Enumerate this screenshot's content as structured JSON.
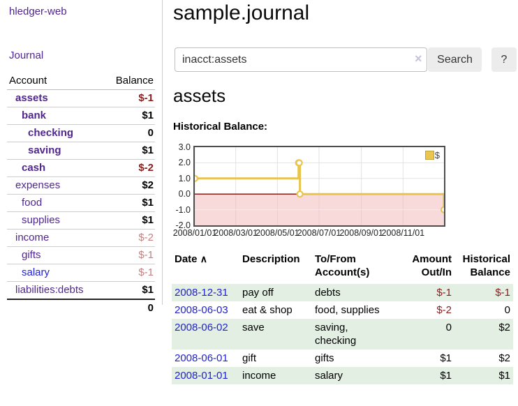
{
  "app": {
    "brand": "hledger-web",
    "nav_journal": "Journal"
  },
  "sidebar": {
    "table": {
      "account_header": "Account",
      "balance_header": "Balance",
      "rows": [
        {
          "name": "assets",
          "balance": "$-1",
          "depth": 1,
          "bold": true
        },
        {
          "name": "bank",
          "balance": "$1",
          "depth": 2,
          "bold": true
        },
        {
          "name": "checking",
          "balance": "0",
          "depth": 3,
          "bold": true
        },
        {
          "name": "saving",
          "balance": "$1",
          "depth": 3,
          "bold": true
        },
        {
          "name": "cash",
          "balance": "$-2",
          "depth": 2,
          "bold": true
        },
        {
          "name": "expenses",
          "balance": "$2",
          "depth": 1,
          "bold": false
        },
        {
          "name": "food",
          "balance": "$1",
          "depth": 2,
          "bold": false
        },
        {
          "name": "supplies",
          "balance": "$1",
          "depth": 2,
          "bold": false
        },
        {
          "name": "income",
          "balance": "$-2",
          "depth": 1,
          "bold": false
        },
        {
          "name": "gifts",
          "balance": "$-1",
          "depth": 2,
          "bold": false
        },
        {
          "name": "salary",
          "balance": "$-1",
          "depth": 2,
          "bold": false,
          "link_color": "blue"
        },
        {
          "name": "liabilities:debts",
          "balance": "$1",
          "depth": 1,
          "bold": false
        }
      ],
      "total": "0"
    }
  },
  "header": {
    "title": "sample.journal"
  },
  "search": {
    "value": "inacct:assets",
    "clear_icon": "×",
    "button_label": "Search",
    "help_label": "?"
  },
  "account_page": {
    "heading": "assets",
    "chart_label": "Historical Balance:"
  },
  "chart_data": {
    "type": "line",
    "style": "step-after",
    "title": "Historical Balance",
    "series": [
      {
        "name": "$",
        "points": [
          {
            "date": "2008-01-01",
            "value": 1
          },
          {
            "date": "2008-06-01",
            "value": 2
          },
          {
            "date": "2008-06-02",
            "value": 2
          },
          {
            "date": "2008-06-03",
            "value": 0
          },
          {
            "date": "2008-12-31",
            "value": -1
          }
        ]
      }
    ],
    "ylim": [
      -2.0,
      3.0
    ],
    "yticks": [
      "3.0",
      "2.0",
      "1.0",
      "0.0",
      "-1.0",
      "-2.0"
    ],
    "xticks": [
      "2008/01/01",
      "2008/03/01",
      "2008/05/01",
      "2008/07/01",
      "2008/09/01",
      "2008/11/01"
    ],
    "legend": {
      "label": "$",
      "position": "top-right"
    },
    "grid": true,
    "colors": {
      "line": "#e8c44e",
      "negative_region": "#f9dada",
      "zero_line": "#8b1a1a",
      "grid_positive": "#e2e2e2",
      "grid_negative_v": "#eec9c9",
      "grid_negative_h": "#fbe9e9"
    }
  },
  "register": {
    "columns": [
      "Date",
      "Description",
      "To/From Account(s)",
      "Amount Out/In",
      "Historical Balance"
    ],
    "sort_indicator": "∧",
    "rows": [
      {
        "date": "2008-12-31",
        "description": "pay off",
        "accounts": "debts",
        "amount": "$-1",
        "balance": "$-1"
      },
      {
        "date": "2008-06-03",
        "description": "eat & shop",
        "accounts": "food, supplies",
        "amount": "$-2",
        "balance": "0"
      },
      {
        "date": "2008-06-02",
        "description": "save",
        "accounts": "saving, checking",
        "amount": "0",
        "balance": "$2"
      },
      {
        "date": "2008-06-01",
        "description": "gift",
        "accounts": "gifts",
        "amount": "$1",
        "balance": "$2"
      },
      {
        "date": "2008-01-01",
        "description": "income",
        "accounts": "salary",
        "amount": "$1",
        "balance": "$1"
      }
    ]
  }
}
